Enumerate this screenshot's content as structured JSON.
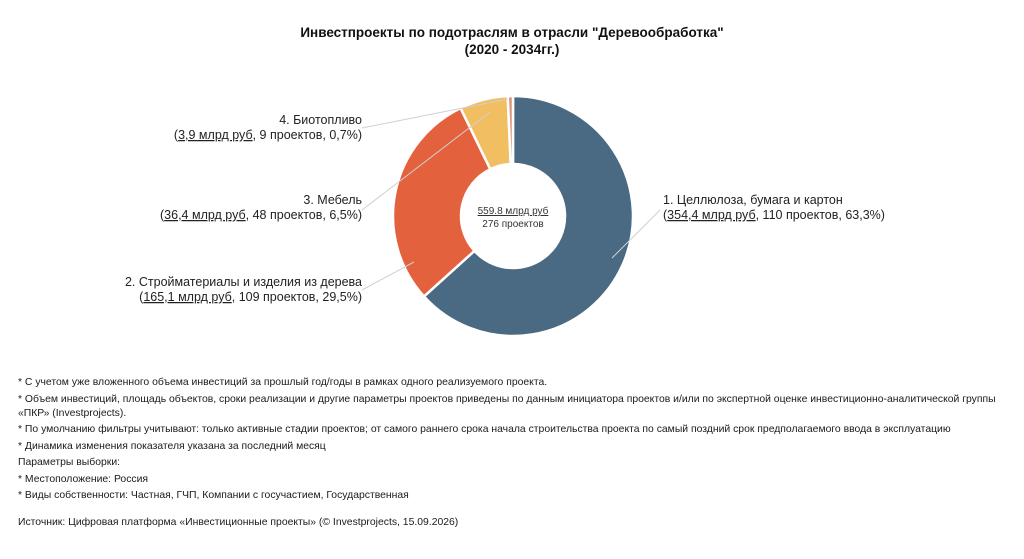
{
  "chart_data": {
    "type": "pie",
    "donut": true,
    "title": "Инвестпроекты по подотраслям в отрасли \"Деревообработка\"",
    "subtitle": "(2020 - 2034гг.)",
    "center_value": "559.8 млрд руб",
    "center_count": "276 проектов",
    "slices": [
      {
        "name": "1. Целлюлоза, бумага и картон",
        "amount": "354,4 млрд руб",
        "rest": ", 110 проектов, 63,3%)",
        "value": 63.3,
        "color": "#4a6a83"
      },
      {
        "name": "2. Стройматериалы и изделия из дерева",
        "amount": "165,1 млрд руб",
        "rest": ", 109 проектов, 29,5%)",
        "value": 29.5,
        "color": "#e4613d"
      },
      {
        "name": "3. Мебель",
        "amount": "36,4 млрд руб",
        "rest": ", 48 проектов, 6,5%)",
        "value": 6.5,
        "color": "#f1bf62"
      },
      {
        "name": "4. Биотопливо",
        "amount": "3,9 млрд руб",
        "rest": ", 9 проектов, 0,7%)",
        "value": 0.7,
        "color": "#d9967c"
      }
    ]
  },
  "notes": [
    "* С учетом уже вложенного объема инвестиций за прошлый год/годы в рамках одного реализуемого проекта.",
    "* Объем инвестиций, площадь объектов, сроки реализации и другие параметры проектов приведены по данным инициатора проектов и/или по экспертной оценке инвестиционно-аналитической группы «ПКР» (Investprojects).",
    "* По умолчанию фильтры учитывают: только активные стадии проектов; от самого раннего срока начала строительства проекта по самый поздний срок предполагаемого ввода в эксплуатацию",
    "* Динамика изменения показателя указана за последний месяц",
    "Параметры выборки:",
    "* Местоположение: Россия",
    "* Виды собственности: Частная, ГЧП, Компании с госучастием, Государственная"
  ],
  "source": "Источник: Цифровая платформа «Инвестиционные проекты» (© Investprojects, 15.09.2026)"
}
